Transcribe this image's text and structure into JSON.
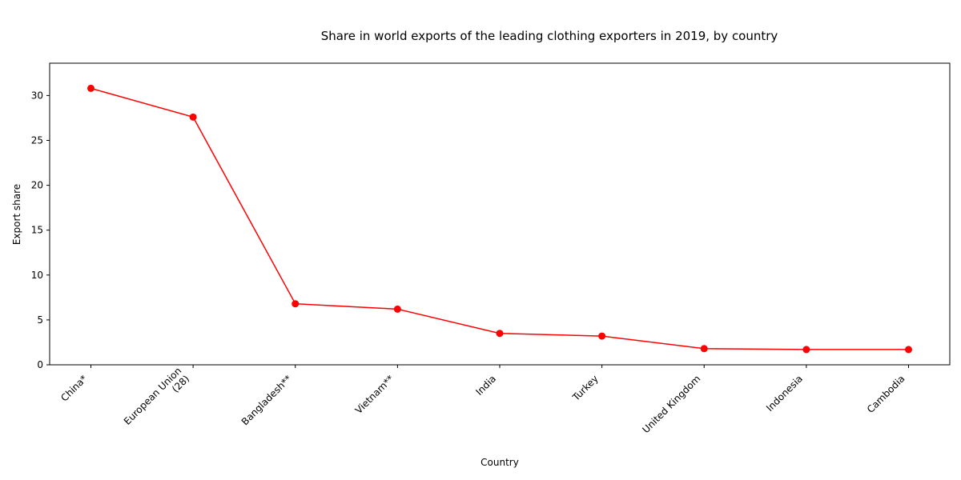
{
  "chart_data": {
    "type": "line",
    "title": "Share in world exports of the leading clothing exporters in 2019, by country",
    "xlabel": "Country",
    "ylabel": "Export share",
    "categories": [
      "China*",
      "European Union\n(28)",
      "Bangladesh**",
      "Vietnam**",
      "India",
      "Turkey",
      "United Kingdom",
      "Indonesia",
      "Cambodia"
    ],
    "series": [
      {
        "values": [
          30.8,
          27.6,
          6.8,
          6.2,
          3.5,
          3.2,
          1.8,
          1.7,
          1.7
        ]
      }
    ],
    "ylim": [
      0,
      33.6
    ],
    "yticks": [
      0,
      5,
      10,
      15,
      20,
      25,
      30
    ],
    "grid": false,
    "line_color": "#ff0000"
  }
}
